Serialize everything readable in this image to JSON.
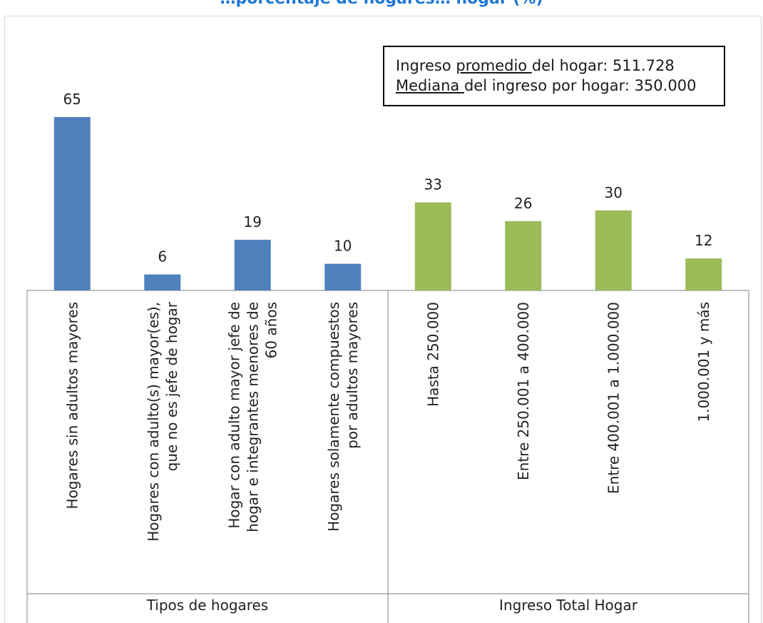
{
  "colors": {
    "title": "#1F77D4",
    "group1_bar": "#4F81BD",
    "group2_bar": "#9BBB59",
    "axis": "#808080",
    "text": "#222222"
  },
  "infobox": {
    "line1_prefix": "Ingreso ",
    "line1_underlined": "promedio ",
    "line1_suffix": "del hogar: 511.728",
    "line2_underlined": "Mediana ",
    "line2_suffix": "del ingreso por hogar: 350.000"
  },
  "chart_data": {
    "type": "bar",
    "title": "…porcentaje de hogares… hogar (%)",
    "xlabel": "",
    "ylabel": "",
    "ylim": [
      0,
      65
    ],
    "grid": false,
    "legend": "none",
    "data_labels": true,
    "groups": [
      {
        "name": "Tipos de hogares",
        "color": "#4F81BD",
        "categories": [
          [
            "Hogares sin adultos mayores"
          ],
          [
            "Hogares con adulto(s) mayor(es),",
            "que no es jefe de hogar"
          ],
          [
            "Hogar con adulto mayor jefe de",
            "hogar e integrantes menores de",
            "60 años"
          ],
          [
            "Hogares solamente compuestos",
            "por adultos mayores"
          ]
        ],
        "values": [
          65,
          6,
          19,
          10
        ]
      },
      {
        "name": "Ingreso Total Hogar",
        "color": "#9BBB59",
        "categories": [
          [
            "Hasta 250.000"
          ],
          [
            "Entre 250.001 a 400.000"
          ],
          [
            "Entre 400.001 a 1.000.000"
          ],
          [
            "1.000.001 y más"
          ]
        ],
        "values": [
          33,
          26,
          30,
          12
        ]
      }
    ]
  }
}
